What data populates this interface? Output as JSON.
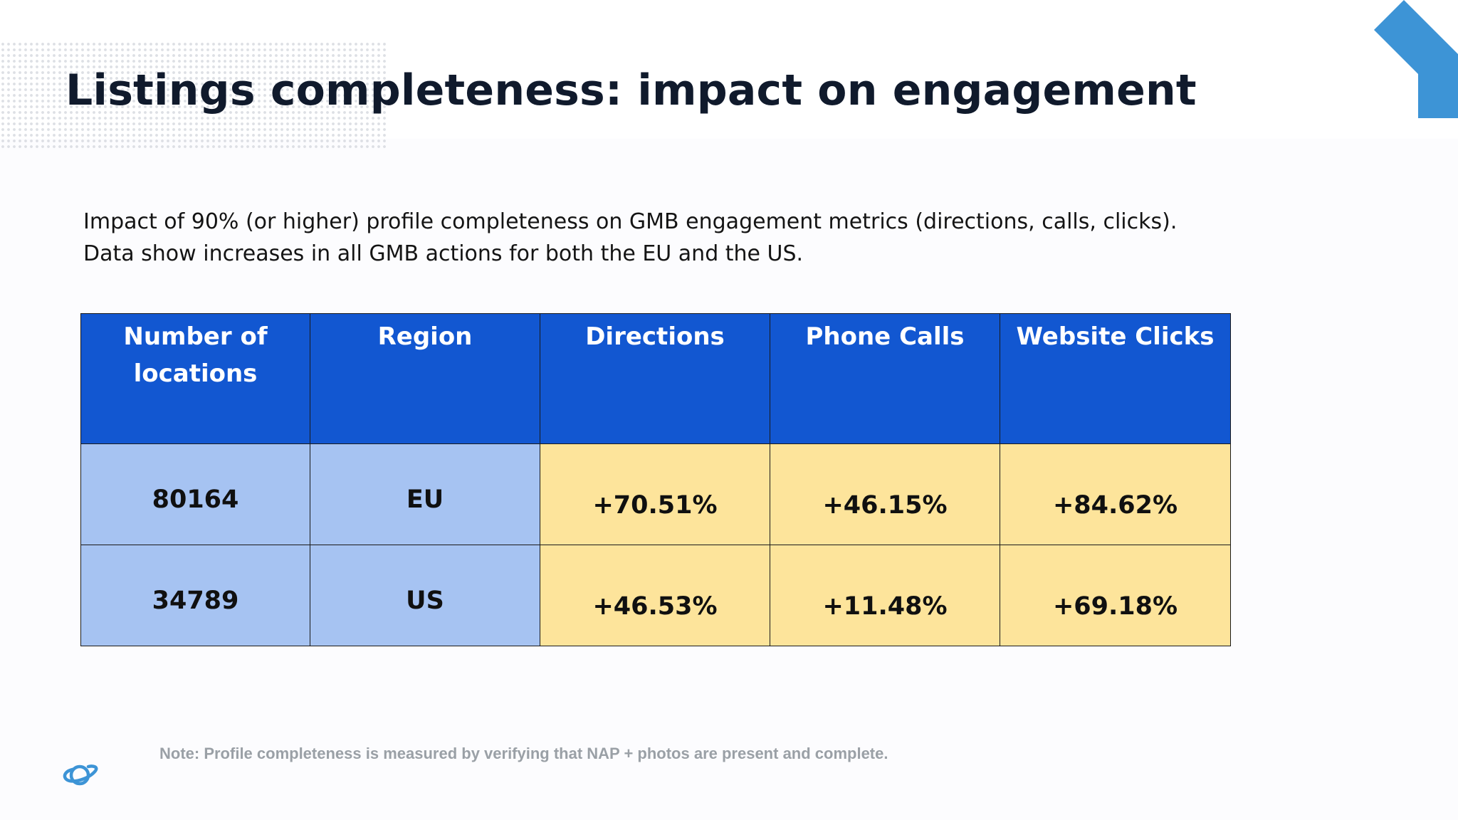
{
  "title": "Listings completeness: impact on engagement",
  "description": [
    "Impact of 90% (or higher) profile completeness on GMB engagement metrics (directions, calls, clicks).",
    "Data show increases in all GMB actions for both the EU and the US."
  ],
  "table": {
    "headers": [
      "Number of locations",
      "Region",
      "Directions",
      "Phone Calls",
      "Website Clicks"
    ],
    "rows": [
      {
        "locations": "80164",
        "region": "EU",
        "directions": "+70.51%",
        "phone_calls": "+46.15%",
        "website_clicks": "+84.62%"
      },
      {
        "locations": "34789",
        "region": "US",
        "directions": "+46.53%",
        "phone_calls": "+11.48%",
        "website_clicks": "+69.18%"
      }
    ]
  },
  "note": "Note: Profile completeness is measured by verifying that NAP + photos are present and complete.",
  "icons": {
    "corner": "corner-arrow-icon",
    "logo": "planet-logo-icon"
  },
  "colors": {
    "header_bg": "#1257d1",
    "key_cells_bg": "#a6c3f2",
    "value_cells_bg": "#fde49b",
    "accent": "#3d94d6",
    "title": "#101a2c",
    "note": "#9aa0a6"
  }
}
